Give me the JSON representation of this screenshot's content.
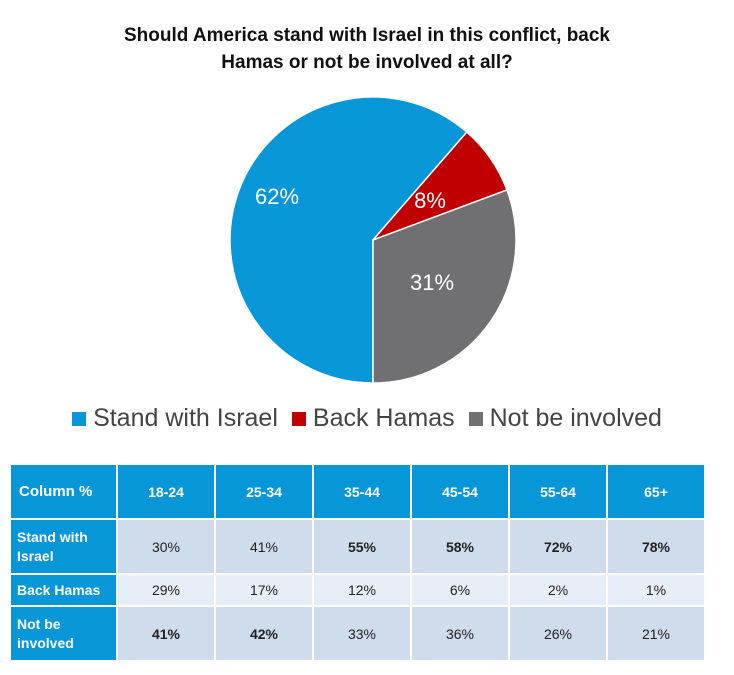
{
  "chart_data": [
    {
      "type": "pie",
      "title": "Should America stand with Israel in this conflict, back Hamas or not be involved at all?",
      "title_lines": [
        "Should America stand with Israel in this conflict, back",
        "Hamas or not be involved at all?"
      ],
      "series": [
        {
          "name": "Stand with Israel",
          "value": 62,
          "label": "62%",
          "color": "#0797d8"
        },
        {
          "name": "Back Hamas",
          "value": 8,
          "label": "8%",
          "color": "#c00000"
        },
        {
          "name": "Not be involved",
          "value": 31,
          "label": "31%",
          "color": "#707073"
        }
      ],
      "legend_position": "bottom"
    },
    {
      "type": "table",
      "header": [
        "Column %",
        "18-24",
        "25-34",
        "35-44",
        "45-54",
        "55-64",
        "65+"
      ],
      "rows": [
        {
          "label": "Stand with Israel",
          "cells": [
            {
              "v": "30%",
              "bold": false
            },
            {
              "v": "41%",
              "bold": false
            },
            {
              "v": "55%",
              "bold": true
            },
            {
              "v": "58%",
              "bold": true
            },
            {
              "v": "72%",
              "bold": true
            },
            {
              "v": "78%",
              "bold": true
            }
          ]
        },
        {
          "label": "Back Hamas",
          "cells": [
            {
              "v": "29%",
              "bold": false
            },
            {
              "v": "17%",
              "bold": false
            },
            {
              "v": "12%",
              "bold": false
            },
            {
              "v": "6%",
              "bold": false
            },
            {
              "v": "2%",
              "bold": false
            },
            {
              "v": "1%",
              "bold": false
            }
          ]
        },
        {
          "label": "Not be involved",
          "cells": [
            {
              "v": "41%",
              "bold": true
            },
            {
              "v": "42%",
              "bold": true
            },
            {
              "v": "33%",
              "bold": false
            },
            {
              "v": "36%",
              "bold": false
            },
            {
              "v": "26%",
              "bold": false
            },
            {
              "v": "21%",
              "bold": false
            }
          ]
        }
      ]
    }
  ]
}
